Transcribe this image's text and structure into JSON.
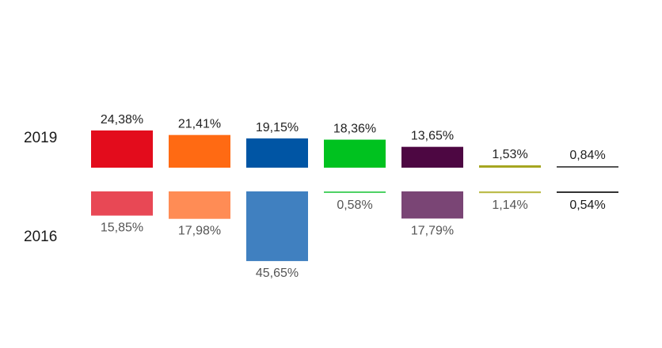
{
  "chart_data": {
    "type": "bar",
    "title": "",
    "categories": [
      "",
      "",
      "",
      "",
      "",
      "",
      ""
    ],
    "series": [
      {
        "name": "2019",
        "values": [
          24.38,
          21.41,
          19.15,
          18.36,
          13.65,
          1.53,
          0.84
        ],
        "labels": [
          "24,38%",
          "21,41%",
          "19,15%",
          "18,36%",
          "13,65%",
          "1,53%",
          "0,84%"
        ]
      },
      {
        "name": "2016",
        "values": [
          15.85,
          17.98,
          45.65,
          0.58,
          17.79,
          1.14,
          0.54
        ],
        "labels": [
          "15,85%",
          "17,98%",
          "45,65%",
          "0,58%",
          "17,79%",
          "1,14%",
          "0,54%"
        ]
      }
    ],
    "colors_2019": [
      "#e30c1c",
      "#ff6a13",
      "#0055a4",
      "#00c21f",
      "#4d0742",
      "#a5a51e",
      "#555555"
    ],
    "colors_2016": [
      "#e84855",
      "#ff8c55",
      "#4080c0",
      "#4ed164",
      "#7a4575",
      "#bcbc4a",
      "#333333"
    ],
    "legend": "none",
    "grid": false
  }
}
